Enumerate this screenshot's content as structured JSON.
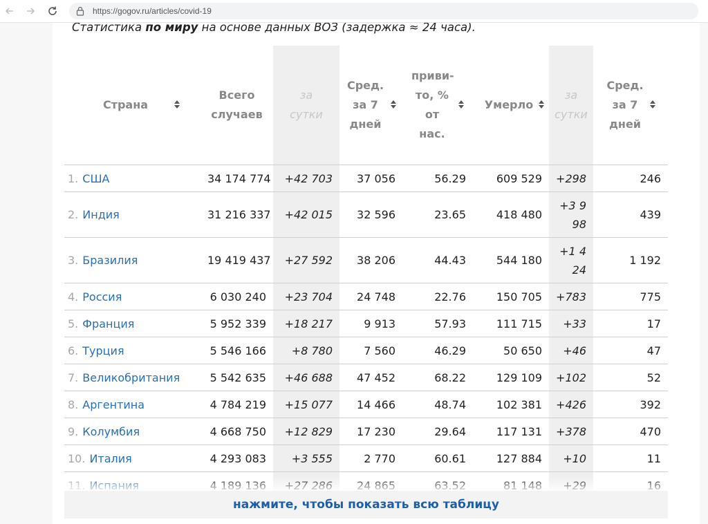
{
  "browser": {
    "url": "https://gogov.ru/articles/covid-19"
  },
  "intro": {
    "prefix": "Статистика ",
    "bold": "по миру",
    "suffix": " на основе данных ВОЗ (задержка ≈ 24 часа)."
  },
  "table": {
    "headers": {
      "country": "Страна",
      "total_cases": "Всего случаев",
      "per_day_cases": "за сутки",
      "avg7_cases": "Сред. за 7 дней",
      "vaccinated": "приви-то, % от нас.",
      "deaths": "Умерло",
      "per_day_deaths": "за сутки",
      "avg7_deaths": "Сред. за 7 дней"
    },
    "rows": [
      {
        "num": "1.",
        "country": "США",
        "total": "34 174 774",
        "day": "+42 703",
        "avg7": "37 056",
        "vacc": "56.29",
        "deaths": "609 529",
        "day_d": "+298",
        "avg7_d": "246"
      },
      {
        "num": "2.",
        "country": "Индия",
        "total": "31 216 337",
        "day": "+42 015",
        "avg7": "32 596",
        "vacc": "23.65",
        "deaths": "418 480",
        "day_d": "+3 998",
        "avg7_d": "439"
      },
      {
        "num": "3.",
        "country": "Бразилия",
        "total": "19 419 437",
        "day": "+27 592",
        "avg7": "38 206",
        "vacc": "44.43",
        "deaths": "544 180",
        "day_d": "+1 424",
        "avg7_d": "1 192"
      },
      {
        "num": "4.",
        "country": "Россия",
        "total": "6 030 240",
        "day": "+23 704",
        "avg7": "24 748",
        "vacc": "22.76",
        "deaths": "150 705",
        "day_d": "+783",
        "avg7_d": "775"
      },
      {
        "num": "5.",
        "country": "Франция",
        "total": "5 952 339",
        "day": "+18 217",
        "avg7": "9 913",
        "vacc": "57.93",
        "deaths": "111 715",
        "day_d": "+33",
        "avg7_d": "17"
      },
      {
        "num": "6.",
        "country": "Турция",
        "total": "5 546 166",
        "day": "+8 780",
        "avg7": "7 560",
        "vacc": "46.29",
        "deaths": "50 650",
        "day_d": "+46",
        "avg7_d": "47"
      },
      {
        "num": "7.",
        "country": "Великобритания",
        "total": "5 542 635",
        "day": "+46 688",
        "avg7": "47 452",
        "vacc": "68.22",
        "deaths": "129 109",
        "day_d": "+102",
        "avg7_d": "52"
      },
      {
        "num": "8.",
        "country": "Аргентина",
        "total": "4 784 219",
        "day": "+15 077",
        "avg7": "14 466",
        "vacc": "48.74",
        "deaths": "102 381",
        "day_d": "+426",
        "avg7_d": "392"
      },
      {
        "num": "9.",
        "country": "Колумбия",
        "total": "4 668 750",
        "day": "+12 829",
        "avg7": "17 230",
        "vacc": "29.64",
        "deaths": "117 131",
        "day_d": "+378",
        "avg7_d": "470"
      },
      {
        "num": "10.",
        "country": "Италия",
        "total": "4 293 083",
        "day": "+3 555",
        "avg7": "2 770",
        "vacc": "60.61",
        "deaths": "127 884",
        "day_d": "+10",
        "avg7_d": "11"
      },
      {
        "num": "11.",
        "country": "Испания",
        "total": "4 189 136",
        "day": "+27 286",
        "avg7": "24 865",
        "vacc": "63.52",
        "deaths": "81 148",
        "day_d": "+29",
        "avg7_d": "16"
      }
    ]
  },
  "show_all": "нажмите, чтобы показать всю таблицу",
  "colors": {
    "link": "#2a6fb3",
    "button_text": "#1e5fa8",
    "highlight_column": "#efefef"
  }
}
